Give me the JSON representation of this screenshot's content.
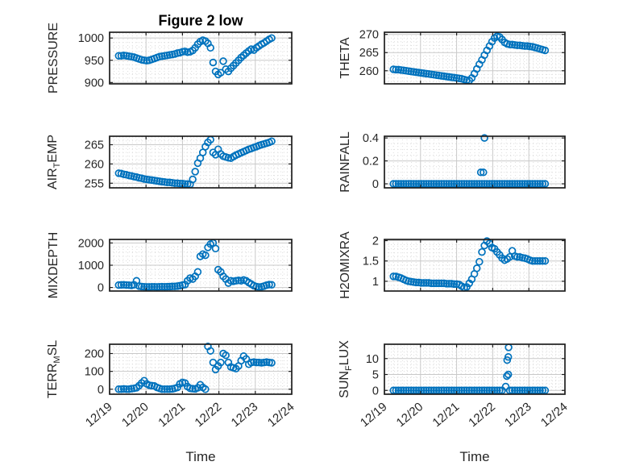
{
  "figure": {
    "title": "Figure 2 low",
    "xlabel": "Time"
  },
  "style": {
    "marker_color": "#0072BD",
    "grid_major_color": "#c9c9c9",
    "grid_minor_color": "#dcdcdc",
    "spine_color": "#1f1f1f",
    "text_color": "#262626"
  },
  "axis": {
    "xlim": [
      0,
      5
    ],
    "x_ticks": [
      0,
      1,
      2,
      3,
      4,
      5
    ],
    "x_ticklabels": [
      "12/19",
      "12/20",
      "12/21",
      "12/22",
      "12/23",
      "12/24"
    ],
    "x_minor_step": 0.125
  },
  "x_days_from_12_19": [
    0.25,
    0.32,
    0.39,
    0.46,
    0.53,
    0.6,
    0.67,
    0.74,
    0.81,
    0.88,
    0.95,
    1.02,
    1.09,
    1.16,
    1.23,
    1.3,
    1.37,
    1.44,
    1.51,
    1.58,
    1.65,
    1.72,
    1.79,
    1.86,
    1.93,
    2,
    2.07,
    2.14,
    2.21,
    2.28,
    2.35,
    2.42,
    2.49,
    2.56,
    2.63,
    2.7,
    2.77,
    2.84,
    2.91,
    2.98,
    3.05,
    3.12,
    3.19,
    3.26,
    3.33,
    3.4,
    3.47,
    3.54,
    3.61,
    3.68,
    3.75,
    3.82,
    3.89,
    3.96,
    4.03,
    4.1,
    4.17,
    4.24,
    4.31,
    4.38,
    4.45
  ],
  "chart_data": [
    {
      "type": "scatter",
      "id": "pressure",
      "ylabel": "PRESSURE",
      "label_parts": [
        [
          "PRESSURE",
          "n"
        ]
      ],
      "ylim": [
        897,
        1013
      ],
      "yticks": [
        900,
        950,
        1000
      ],
      "ytick_labels": [
        "900",
        "950",
        "1000"
      ],
      "y_minor_step": 10,
      "y": [
        960,
        960,
        961,
        960,
        959,
        958,
        957,
        955,
        953,
        951,
        950,
        949,
        950,
        952,
        954,
        956,
        958,
        959,
        960,
        961,
        962,
        963,
        964,
        966,
        967,
        969,
        970,
        968,
        969,
        972,
        978,
        986,
        992,
        995,
        993,
        988,
        978,
        945,
        925,
        918,
        922,
        948,
        930,
        925,
        932,
        938,
        944,
        950,
        956,
        961,
        966,
        971,
        975,
        973,
        978,
        982,
        986,
        989,
        993,
        997,
        1000
      ],
      "extra_points": []
    },
    {
      "type": "scatter",
      "id": "theta",
      "ylabel": "THETA",
      "label_parts": [
        [
          "THETA",
          "n"
        ]
      ],
      "ylim": [
        256.4,
        270.6
      ],
      "yticks": [
        260,
        265,
        270
      ],
      "ytick_labels": [
        "260",
        "265",
        "270"
      ],
      "y_minor_step": 1,
      "y": [
        260.4,
        260.3,
        260.3,
        260.2,
        260.1,
        260,
        259.9,
        259.8,
        259.7,
        259.6,
        259.5,
        259.4,
        259.3,
        259.2,
        259.1,
        259,
        258.9,
        258.8,
        258.7,
        258.6,
        258.5,
        258.4,
        258.3,
        258.2,
        258.1,
        258,
        257.9,
        257.8,
        257.6,
        257.4,
        257.3,
        258,
        259.2,
        260.5,
        261.8,
        263,
        264.3,
        265.6,
        266.8,
        268,
        269,
        269.5,
        269.3,
        268.6,
        267.8,
        267.4,
        267.2,
        267.2,
        267.1,
        267,
        267,
        266.9,
        266.8,
        266.8,
        266.7,
        266.6,
        266.4,
        266.2,
        266,
        265.8,
        265.6
      ],
      "extra_points": []
    },
    {
      "type": "scatter",
      "id": "air_temp",
      "ylabel": "AIR_TEMP",
      "label_parts": [
        [
          "AIR",
          "n"
        ],
        [
          "T",
          "s"
        ],
        [
          "EMP",
          "n"
        ]
      ],
      "ylim": [
        253.8,
        267.2
      ],
      "yticks": [
        255,
        260,
        265
      ],
      "ytick_labels": [
        "255",
        "260",
        "265"
      ],
      "y_minor_step": 1,
      "y": [
        257.6,
        257.5,
        257.3,
        257.2,
        257,
        256.9,
        256.7,
        256.6,
        256.4,
        256.3,
        256.1,
        256,
        255.9,
        255.8,
        255.7,
        255.6,
        255.5,
        255.4,
        255.3,
        255.2,
        255.2,
        255.1,
        255,
        255,
        254.9,
        254.9,
        254.8,
        254.8,
        254.7,
        256,
        258,
        260.2,
        261.5,
        263,
        264.5,
        265.6,
        266.3,
        263,
        262.4,
        263.8,
        262.6,
        262,
        261.8,
        261.6,
        261.5,
        261.9,
        262.3,
        262.6,
        262.9,
        263.2,
        263.5,
        263.8,
        264,
        264.3,
        264.5,
        264.8,
        265,
        265.2,
        265.4,
        265.6,
        265.9
      ],
      "extra_points": []
    },
    {
      "type": "scatter",
      "id": "rainfall",
      "ylabel": "RAINFALL",
      "label_parts": [
        [
          "RAINFALL",
          "n"
        ]
      ],
      "ylim": [
        -0.035,
        0.415
      ],
      "yticks": [
        0,
        0.2,
        0.4
      ],
      "ytick_labels": [
        "0",
        "0.2",
        "0.4"
      ],
      "y_minor_step": 0.05,
      "y": [
        0,
        0,
        0,
        0,
        0,
        0,
        0,
        0,
        0,
        0,
        0,
        0,
        0,
        0,
        0,
        0,
        0,
        0,
        0,
        0,
        0,
        0,
        0,
        0,
        0,
        0,
        0,
        0,
        0,
        0,
        0,
        0,
        0,
        0,
        0,
        0,
        0,
        0,
        0,
        0,
        0,
        0,
        0,
        0,
        0,
        0,
        0,
        0,
        0,
        0,
        0,
        0,
        0,
        0,
        0,
        0,
        0,
        0,
        0,
        0,
        0
      ],
      "extra_points": [
        [
          2.67,
          0.1
        ],
        [
          2.74,
          0.1
        ],
        [
          2.77,
          0.4
        ]
      ]
    },
    {
      "type": "scatter",
      "id": "mixdepth",
      "ylabel": "MIXDEPTH",
      "label_parts": [
        [
          "MIXDEPTH",
          "n"
        ]
      ],
      "ylim": [
        -160,
        2160
      ],
      "yticks": [
        0,
        1000,
        2000
      ],
      "ytick_labels": [
        "0",
        "1000",
        "2000"
      ],
      "y_minor_step": 200,
      "y": [
        110,
        115,
        120,
        110,
        100,
        95,
        120,
        300,
        60,
        40,
        30,
        25,
        25,
        30,
        30,
        25,
        30,
        35,
        30,
        35,
        40,
        45,
        50,
        60,
        80,
        110,
        130,
        300,
        420,
        380,
        500,
        700,
        1400,
        1500,
        1450,
        1800,
        1950,
        2000,
        1750,
        800,
        700,
        500,
        380,
        200,
        300,
        280,
        300,
        320,
        300,
        340,
        300,
        220,
        150,
        80,
        40,
        20,
        30,
        60,
        100,
        130,
        120
      ],
      "extra_points": []
    },
    {
      "type": "scatter",
      "id": "h2omixra",
      "ylabel": "H2OMIXRA",
      "label_parts": [
        [
          "H2OMIXRA",
          "n"
        ]
      ],
      "ylim": [
        0.76,
        2.03
      ],
      "yticks": [
        1,
        1.5,
        2
      ],
      "ytick_labels": [
        "1",
        "1.5",
        "2"
      ],
      "y_minor_step": 0.1,
      "y": [
        1.12,
        1.12,
        1.1,
        1.08,
        1.05,
        1.02,
        1,
        0.99,
        0.98,
        0.97,
        0.97,
        0.96,
        0.96,
        0.96,
        0.96,
        0.95,
        0.95,
        0.95,
        0.95,
        0.95,
        0.95,
        0.94,
        0.94,
        0.94,
        0.93,
        0.93,
        0.92,
        0.88,
        0.84,
        0.86,
        0.95,
        1.05,
        1.18,
        1.32,
        1.48,
        1.72,
        1.88,
        1.99,
        1.93,
        1.83,
        1.8,
        1.72,
        1.65,
        1.57,
        1.52,
        1.55,
        1.6,
        1.75,
        1.62,
        1.6,
        1.6,
        1.58,
        1.57,
        1.55,
        1.52,
        1.5,
        1.5,
        1.5,
        1.5,
        1.5,
        1.5
      ],
      "extra_points": []
    },
    {
      "type": "scatter",
      "id": "terr_msl",
      "ylabel": "TERR_MSL",
      "label_parts": [
        [
          "TERR",
          "n"
        ],
        [
          "M",
          "s"
        ],
        [
          "SL",
          "n"
        ]
      ],
      "ylim": [
        -28,
        252
      ],
      "yticks": [
        0,
        100,
        200
      ],
      "ytick_labels": [
        "0",
        "100",
        "200"
      ],
      "y_minor_step": 20,
      "y": [
        0,
        0,
        2,
        0,
        0,
        3,
        5,
        8,
        20,
        35,
        48,
        30,
        22,
        20,
        18,
        10,
        5,
        0,
        0,
        0,
        0,
        2,
        5,
        10,
        30,
        38,
        35,
        15,
        5,
        3,
        2,
        8,
        25,
        10,
        0,
        240,
        215,
        150,
        110,
        130,
        150,
        200,
        190,
        150,
        125,
        120,
        115,
        130,
        160,
        185,
        170,
        140,
        150,
        152,
        150,
        150,
        148,
        150,
        152,
        150,
        148
      ],
      "extra_points": []
    },
    {
      "type": "scatter",
      "id": "sun_flux",
      "ylabel": "SUN_FLUX",
      "label_parts": [
        [
          "SUN",
          "n"
        ],
        [
          "F",
          "s"
        ],
        [
          "LUX",
          "n"
        ]
      ],
      "ylim": [
        -1.2,
        14.5
      ],
      "yticks": [
        0,
        5,
        10
      ],
      "ytick_labels": [
        "0",
        "5",
        "10"
      ],
      "y_minor_step": 1,
      "y": [
        0,
        0,
        0,
        0,
        0,
        0,
        0,
        0,
        0,
        0,
        0,
        0,
        0,
        0,
        0,
        0,
        0,
        0,
        0,
        0,
        0,
        0,
        0,
        0,
        0,
        0,
        0,
        0,
        0,
        0,
        0,
        0,
        0,
        0,
        0,
        0,
        0,
        0,
        0,
        0,
        0,
        0,
        0,
        0,
        null,
        null,
        0,
        0,
        0,
        0,
        0,
        0,
        0,
        0,
        0,
        0,
        0,
        0,
        0,
        0,
        0
      ],
      "extra_points": [
        [
          3.36,
          1.2
        ],
        [
          3.39,
          4.5
        ],
        [
          3.43,
          5
        ],
        [
          3.4,
          9.5
        ],
        [
          3.43,
          10.5
        ],
        [
          3.44,
          13.5
        ]
      ]
    }
  ]
}
